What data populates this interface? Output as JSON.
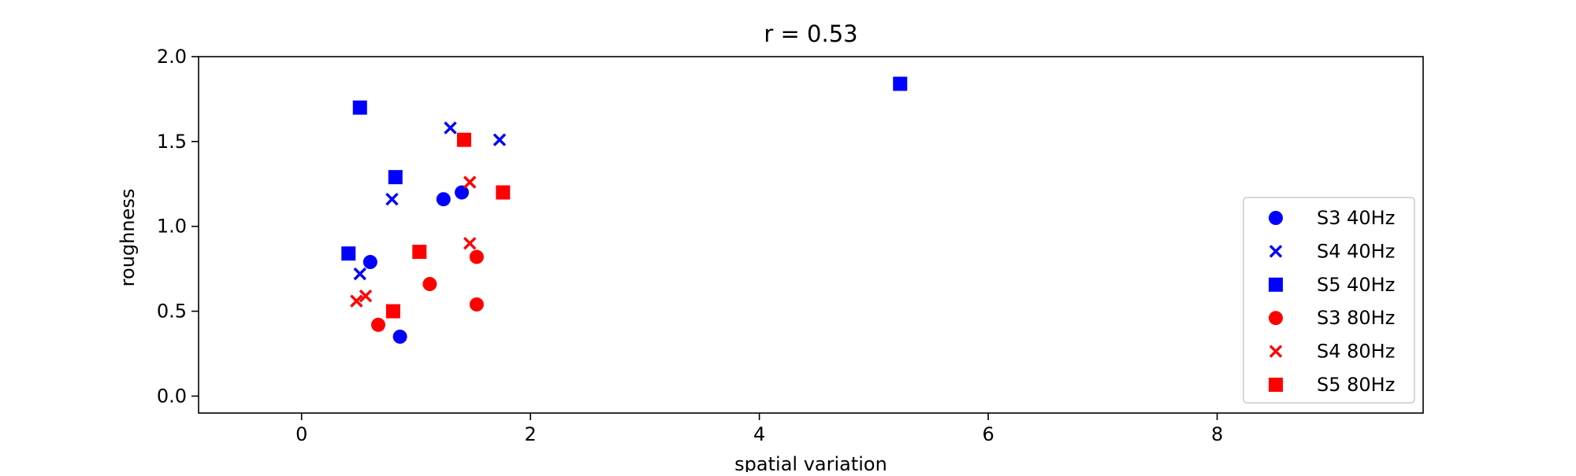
{
  "chart_data": {
    "type": "scatter",
    "title": "r = 0.53",
    "xlabel": "spatial variation",
    "ylabel": "roughness",
    "xlim": [
      -0.9,
      9.8
    ],
    "ylim": [
      -0.1,
      2.0
    ],
    "xticks": [
      0,
      2,
      4,
      6,
      8
    ],
    "yticks": [
      0.0,
      0.5,
      1.0,
      1.5,
      2.0
    ],
    "xtick_labels": [
      "0",
      "2",
      "4",
      "6",
      "8"
    ],
    "ytick_labels": [
      "0.0",
      "0.5",
      "1.0",
      "1.5",
      "2.0"
    ],
    "grid": false,
    "legend_position": "lower-right",
    "series": [
      {
        "name": "S3 40Hz",
        "color": "#0000ff",
        "marker": "circle",
        "points": [
          [
            0.6,
            0.79
          ],
          [
            1.24,
            1.16
          ],
          [
            1.4,
            1.2
          ],
          [
            0.86,
            0.35
          ]
        ]
      },
      {
        "name": "S4 40Hz",
        "color": "#0000ff",
        "marker": "x",
        "points": [
          [
            1.3,
            1.58
          ],
          [
            1.73,
            1.51
          ],
          [
            0.79,
            1.16
          ],
          [
            0.51,
            0.72
          ]
        ]
      },
      {
        "name": "S5 40Hz",
        "color": "#0000ff",
        "marker": "square",
        "points": [
          [
            0.51,
            1.7
          ],
          [
            5.23,
            1.84
          ],
          [
            0.82,
            1.29
          ],
          [
            0.41,
            0.84
          ]
        ]
      },
      {
        "name": "S3 80Hz",
        "color": "#ff0000",
        "marker": "circle",
        "points": [
          [
            1.53,
            0.82
          ],
          [
            1.12,
            0.66
          ],
          [
            1.53,
            0.54
          ],
          [
            0.67,
            0.42
          ]
        ]
      },
      {
        "name": "S4 80Hz",
        "color": "#ff0000",
        "marker": "x",
        "points": [
          [
            1.47,
            1.26
          ],
          [
            1.47,
            0.9
          ],
          [
            0.56,
            0.59
          ],
          [
            0.48,
            0.56
          ]
        ]
      },
      {
        "name": "S5 80Hz",
        "color": "#ff0000",
        "marker": "square",
        "points": [
          [
            1.42,
            1.51
          ],
          [
            1.76,
            1.2
          ],
          [
            1.03,
            0.85
          ],
          [
            0.8,
            0.5
          ]
        ]
      }
    ]
  }
}
